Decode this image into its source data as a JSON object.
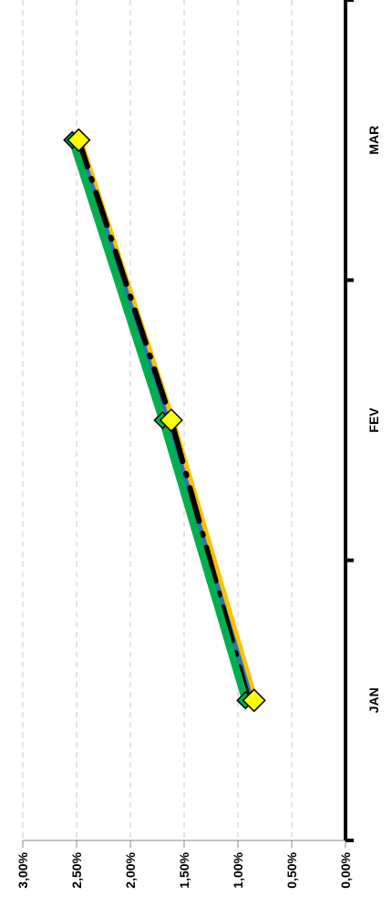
{
  "chart_data": {
    "type": "line",
    "categories": [
      "JAN",
      "FEV",
      "MAR"
    ],
    "ylim": [
      0,
      3
    ],
    "y_ticks": [
      "0,00%",
      "0,50%",
      "1,00%",
      "1,50%",
      "2,00%",
      "2,50%",
      "3,00%"
    ],
    "grid": true,
    "orientation": "rotated-90",
    "series": [
      {
        "color": "#FFC000",
        "style": "solid",
        "marker": "diamond-yellow",
        "values": [
          0.85,
          1.62,
          2.48
        ]
      },
      {
        "color": "#2E75B6",
        "style": "solid",
        "marker": "none",
        "values": [
          0.88,
          1.66,
          2.5
        ]
      },
      {
        "color": "#000000",
        "style": "dash-dot",
        "marker": "none",
        "values": [
          0.9,
          1.62,
          2.48
        ]
      },
      {
        "color": "#00B050",
        "style": "solid",
        "marker": "diamond-green",
        "values": [
          0.93,
          1.7,
          2.54
        ]
      }
    ]
  }
}
